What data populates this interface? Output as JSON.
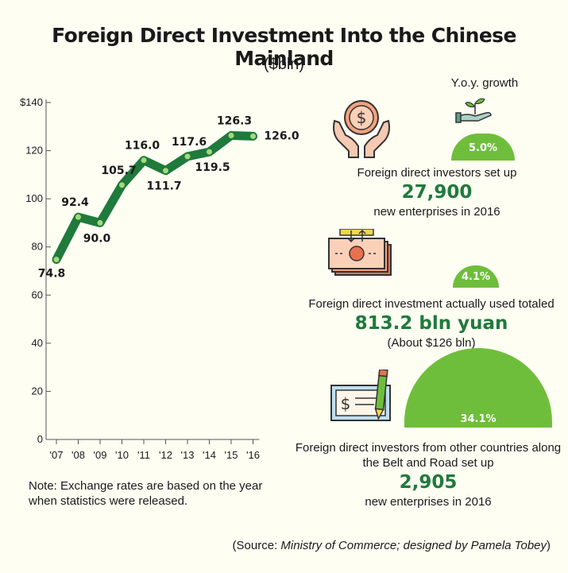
{
  "header": {
    "title": "Foreign Direct Investment Into the Chinese Mainland",
    "subtitle": "($bln)"
  },
  "chart_data": {
    "type": "line",
    "categories": [
      "'07",
      "'08",
      "'09",
      "'10",
      "'11",
      "'12",
      "'13",
      "'14",
      "'15",
      "'16"
    ],
    "values": [
      74.8,
      92.4,
      90.0,
      105.7,
      116.0,
      111.7,
      117.6,
      119.5,
      126.3,
      126.0
    ],
    "data_labels": [
      "74.8",
      "92.4",
      "90.0",
      "105.7",
      "116.0",
      "111.7",
      "117.6",
      "119.5",
      "126.3",
      "126.0"
    ],
    "yticks": [
      "$140",
      "120",
      "100",
      "80",
      "60",
      "40",
      "20",
      "0"
    ],
    "ylim": [
      0,
      140
    ],
    "grid": false,
    "line_color": "#1f7a3c"
  },
  "note": "Note: Exchange rates are based on the year when statistics were released.",
  "yoy_label": "Y.o.y. growth",
  "stats": [
    {
      "growth": "5.0%",
      "line1": "Foreign direct investors set up",
      "big": "27,900",
      "line2": "new enterprises in 2016",
      "icon": "hands-coin-icon"
    },
    {
      "growth": "4.1%",
      "line1": "Foreign direct investment actually used totaled",
      "big": "813.2 bln yuan",
      "line2": "(About $126 bln)",
      "icon": "cash-stack-icon"
    },
    {
      "growth": "34.1%",
      "line1": "Foreign direct investors from other countries along the Belt and Road set up",
      "big": "2,905",
      "line2": "new enterprises in 2016",
      "icon": "check-pen-icon"
    }
  ],
  "source": {
    "prefix": "(Source: ",
    "text": "Ministry of Commerce; designed by Pamela Tobey",
    "suffix": ")"
  },
  "colors": {
    "accent_green": "#6fbe3b",
    "dark_green": "#1f7a3c",
    "icon_orange": "#e8724f",
    "background": "#fefef3"
  }
}
